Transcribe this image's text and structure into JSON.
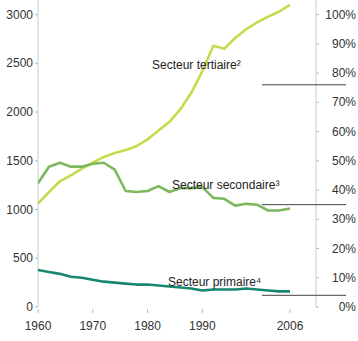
{
  "chart_data": {
    "type": "line",
    "x": [
      1960,
      1962,
      1964,
      1966,
      1968,
      1970,
      1972,
      1974,
      1976,
      1978,
      1980,
      1982,
      1984,
      1986,
      1988,
      1990,
      1992,
      1994,
      1996,
      1998,
      2000,
      2002,
      2004,
      2006
    ],
    "xlim": [
      1960,
      2006
    ],
    "xticks": [
      1960,
      1970,
      1980,
      1990,
      2006
    ],
    "ylim": [
      0,
      3150
    ],
    "yticks": [
      0,
      500,
      1000,
      1500,
      2000,
      2500,
      3000
    ],
    "y2lim": [
      0,
      105
    ],
    "y2ticks": [
      {
        "value": 0,
        "label": "0%"
      },
      {
        "value": 10,
        "label": "10%"
      },
      {
        "value": 20,
        "label": "20%"
      },
      {
        "value": 30,
        "label": "30%"
      },
      {
        "value": 40,
        "label": "40%"
      },
      {
        "value": 50,
        "label": "50%"
      },
      {
        "value": 60,
        "label": "60%"
      },
      {
        "value": 70,
        "label": "70%"
      },
      {
        "value": 80,
        "label": "80%"
      },
      {
        "value": 90,
        "label": "90%"
      },
      {
        "value": 100,
        "label": "100%"
      }
    ],
    "grid": false,
    "series": [
      {
        "name": "Secteur tertiaire²",
        "color": "#c8d94c",
        "values": [
          1060,
          1180,
          1290,
          1350,
          1420,
          1480,
          1540,
          1580,
          1610,
          1650,
          1720,
          1810,
          1900,
          2030,
          2200,
          2420,
          2680,
          2650,
          2760,
          2850,
          2920,
          2980,
          3030,
          3100
        ],
        "share": 76
      },
      {
        "name": "Secteur secondaire³",
        "color": "#7cb85e",
        "values": [
          1270,
          1440,
          1480,
          1440,
          1440,
          1470,
          1480,
          1410,
          1190,
          1180,
          1190,
          1240,
          1180,
          1220,
          1220,
          1230,
          1120,
          1110,
          1040,
          1060,
          1050,
          990,
          990,
          1010
        ],
        "share": 35
      },
      {
        "name": "Secteur primaire⁴",
        "color": "#16866e",
        "values": [
          380,
          360,
          340,
          310,
          300,
          280,
          260,
          250,
          240,
          230,
          230,
          220,
          210,
          200,
          190,
          170,
          180,
          180,
          180,
          190,
          180,
          170,
          160,
          160
        ],
        "share": 4
      }
    ]
  }
}
